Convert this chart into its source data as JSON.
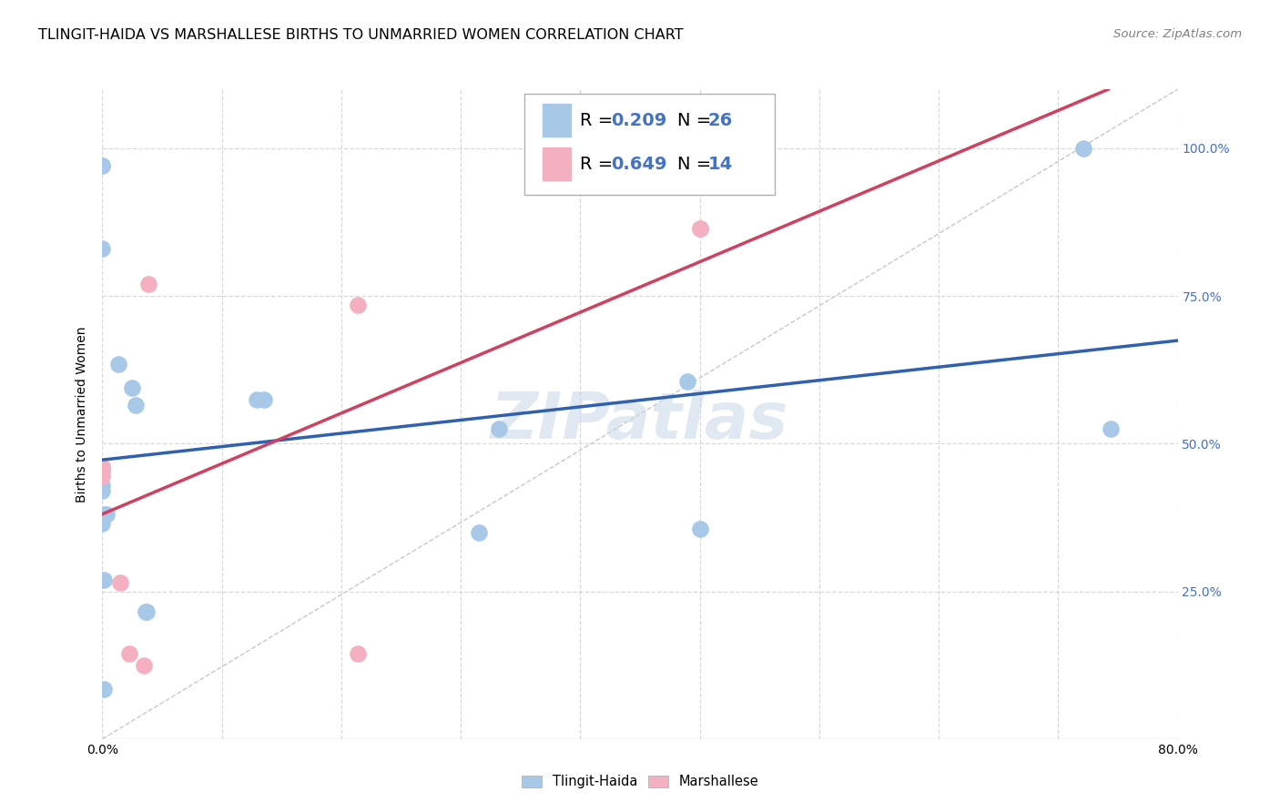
{
  "title": "TLINGIT-HAIDA VS MARSHALLESE BIRTHS TO UNMARRIED WOMEN CORRELATION CHART",
  "source": "Source: ZipAtlas.com",
  "ylabel": "Births to Unmarried Women",
  "tlingit_x": [
    0.001,
    0.012,
    0.0,
    0.0,
    0.0,
    0.0,
    0.0,
    0.0,
    0.0,
    0.0,
    0.0,
    0.001,
    0.025,
    0.022,
    0.032,
    0.033,
    0.115,
    0.12,
    0.28,
    0.295,
    0.435,
    0.445,
    0.73,
    0.75,
    0.002,
    0.003
  ],
  "tlingit_y": [
    0.085,
    0.635,
    0.83,
    0.97,
    0.97,
    0.455,
    0.455,
    0.43,
    0.42,
    0.375,
    0.365,
    0.27,
    0.565,
    0.595,
    0.215,
    0.215,
    0.575,
    0.575,
    0.35,
    0.525,
    0.605,
    0.355,
    1.0,
    0.525,
    0.38,
    0.38
  ],
  "marshallese_x": [
    0.0,
    0.0,
    0.0,
    0.0,
    0.0,
    0.0,
    0.013,
    0.02,
    0.031,
    0.034,
    0.19,
    0.19,
    0.445,
    0.445
  ],
  "marshallese_y": [
    0.445,
    0.455,
    0.455,
    0.455,
    0.46,
    0.46,
    0.265,
    0.145,
    0.125,
    0.77,
    0.735,
    0.145,
    0.865,
    0.865
  ],
  "tlingit_color": "#a8c8e8",
  "marshallese_color": "#f4b0c0",
  "tlingit_line_color": "#3060b0",
  "marshallese_line_color": "#d04060",
  "diagonal_color": "#c8c8c8",
  "watermark_text": "ZIPatlas",
  "background_color": "#ffffff",
  "grid_color": "#d8d8d8",
  "title_fontsize": 11.5,
  "axis_label_fontsize": 10,
  "tick_fontsize": 10,
  "legend_fontsize": 14,
  "source_fontsize": 9.5,
  "xlim": [
    0.0,
    0.8
  ],
  "ylim": [
    0.0,
    1.1
  ],
  "x_tick_positions": [
    0.0,
    0.08889,
    0.17778,
    0.26667,
    0.35556,
    0.44444,
    0.53333,
    0.62222,
    0.71111,
    0.8
  ],
  "x_tick_labels": [
    "0.0%",
    "",
    "",
    "",
    "",
    "",
    "",
    "",
    "",
    "80.0%"
  ],
  "y_tick_positions": [
    0.0,
    0.25,
    0.5,
    0.75,
    1.0
  ],
  "y_tick_labels": [
    "",
    "25.0%",
    "50.0%",
    "75.0%",
    "100.0%"
  ]
}
